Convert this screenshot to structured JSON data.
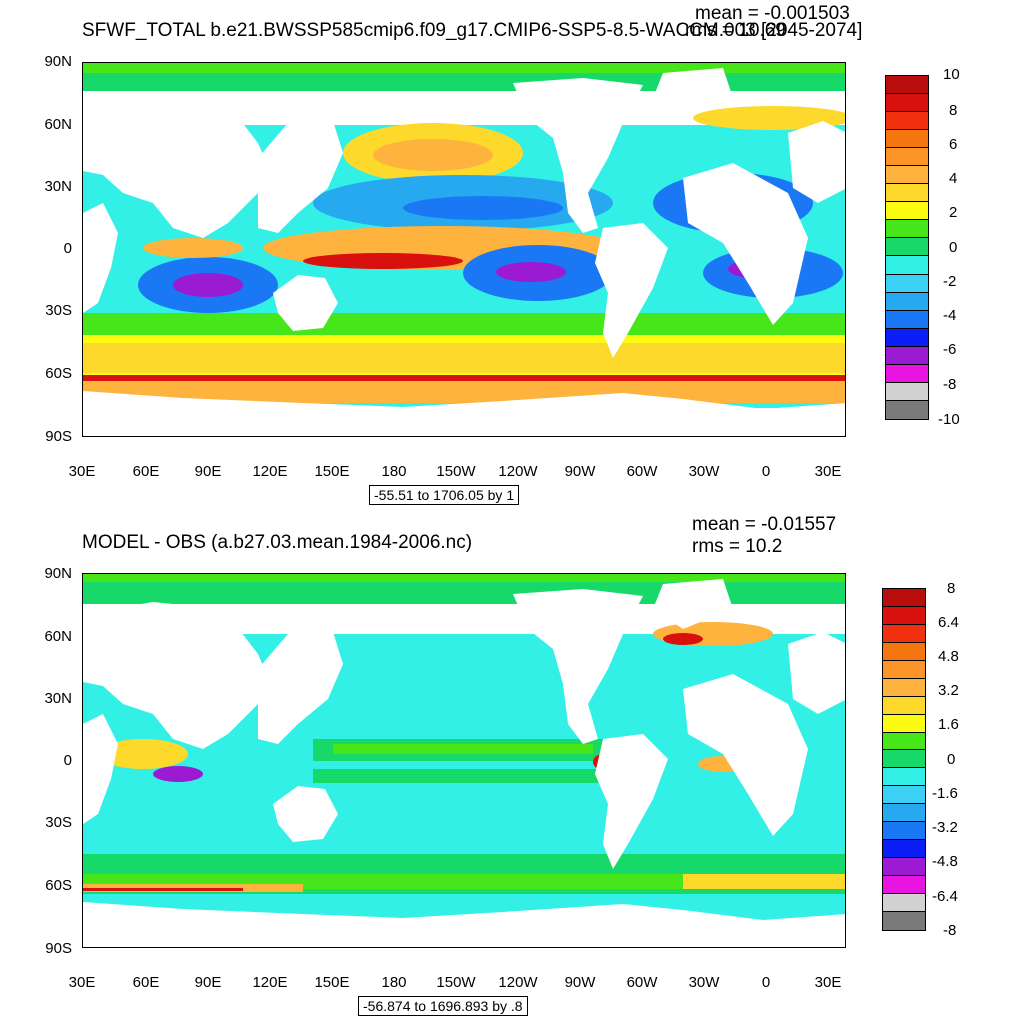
{
  "panels": [
    {
      "title": "SFWF_TOTAL b.e21.BWSSP585cmip6.f09_g17.CMIP6-SSP5-8.5-WACCM.003 [2045-2074]",
      "mean": "mean = -0.001503",
      "rms": "rms = 10.69",
      "range": "-55.51 to 1706.05 by 1",
      "colorbar_labels": [
        "10",
        "8",
        "6",
        "4",
        "2",
        "0",
        "-2",
        "-4",
        "-6",
        "-8",
        "-10"
      ]
    },
    {
      "title": "MODEL - OBS (a.b27.03.mean.1984-2006.nc)",
      "mean": "mean = -0.01557",
      "rms": "rms = 10.2",
      "range": "-56.874 to 1696.893 by .8",
      "colorbar_labels": [
        "8",
        "6.4",
        "4.8",
        "3.2",
        "1.6",
        "0",
        "-1.6",
        "-3.2",
        "-4.8",
        "-6.4",
        "-8"
      ]
    }
  ],
  "axes": {
    "y_labels": [
      "90N",
      "60N",
      "30N",
      "0",
      "30S",
      "60S",
      "90S"
    ],
    "x_labels": [
      "30E",
      "60E",
      "90E",
      "120E",
      "150E",
      "180",
      "150W",
      "120W",
      "90W",
      "60W",
      "30W",
      "0",
      "30E"
    ]
  },
  "colors": {
    "palette": [
      "#7a7a7a",
      "#d2d2d2",
      "#e815e0",
      "#9a1bd1",
      "#0a1ef5",
      "#1a78f5",
      "#27a9f0",
      "#3dd0f5",
      "#33f0e6",
      "#17d96a",
      "#46e61a",
      "#fafa12",
      "#fdd92c",
      "#fdb33d",
      "#fb9429",
      "#f5760f",
      "#f0300f",
      "#d8100e",
      "#b90c0c"
    ],
    "land": "#ffffff"
  }
}
